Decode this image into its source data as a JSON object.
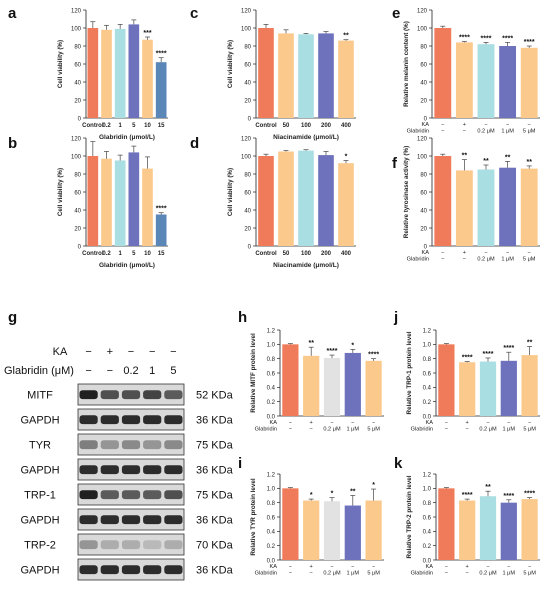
{
  "colors": {
    "control": "#F07B5A",
    "blue": "#A9DEE2",
    "dark": "#6E71BC",
    "peach": "#FBC98C",
    "gray": "#E2E2E2",
    "deep_blue": "#5A86B8",
    "orange": "#F7B057",
    "text": "#222222"
  },
  "western_blot": {
    "panel_label": "g",
    "ka_label": "KA",
    "glabridin_label": "Glabridin (μM)",
    "ka_marks": [
      "−",
      "+",
      "−",
      "−",
      "−"
    ],
    "glab_marks": [
      "−",
      "−",
      "0.2",
      "1",
      "5"
    ],
    "bands": [
      {
        "name": "MITF",
        "kda": "52 KDa"
      },
      {
        "name": "GAPDH",
        "kda": "36 KDa"
      },
      {
        "name": "TYR",
        "kda": "75 KDa"
      },
      {
        "name": "GAPDH",
        "kda": "36 KDa"
      },
      {
        "name": "TRP-1",
        "kda": "75 KDa"
      },
      {
        "name": "GAPDH",
        "kda": "36 KDa"
      },
      {
        "name": "TRP-2",
        "kda": "70 KDa"
      },
      {
        "name": "GAPDH",
        "kda": "36 KDa"
      }
    ]
  },
  "chart_data": [
    {
      "panel": "a",
      "type": "bar",
      "categories": [
        "Control",
        "0.2",
        "1",
        "5",
        "10",
        "15"
      ],
      "values": [
        100,
        98,
        99,
        104,
        87,
        62
      ],
      "errors": [
        7,
        5,
        5,
        5,
        3,
        5
      ],
      "significance": [
        "",
        "",
        "",
        "",
        "***",
        "****"
      ],
      "ylabel": "Cell viability (%)",
      "xlabel": "Glabridin (μmol/L)",
      "ylim": [
        0,
        120
      ],
      "yticks": [
        0,
        20,
        40,
        60,
        80,
        100,
        120
      ],
      "colors": [
        "#F07B5A",
        "#FBC98C",
        "#A9DEE2",
        "#6E71BC",
        "#FBC98C",
        "#5A86B8"
      ]
    },
    {
      "panel": "b",
      "type": "bar",
      "categories": [
        "Control",
        "0.2",
        "1",
        "5",
        "10",
        "15"
      ],
      "values": [
        100,
        97,
        95,
        104,
        86,
        35
      ],
      "errors": [
        16,
        8,
        6,
        7,
        13,
        2
      ],
      "significance": [
        "",
        "",
        "",
        "",
        "",
        "****"
      ],
      "ylabel": "Cell viability (%)",
      "xlabel": "Glabridin (μmol/L)",
      "ylim": [
        0,
        120
      ],
      "yticks": [
        0,
        20,
        40,
        60,
        80,
        100,
        120
      ],
      "colors": [
        "#F07B5A",
        "#FBC98C",
        "#A9DEE2",
        "#6E71BC",
        "#FBC98C",
        "#5A86B8"
      ]
    },
    {
      "panel": "c",
      "type": "bar",
      "categories": [
        "Control",
        "50",
        "100",
        "200",
        "400"
      ],
      "values": [
        100,
        94,
        93,
        94,
        86
      ],
      "errors": [
        4,
        4,
        1,
        2,
        1
      ],
      "significance": [
        "",
        "",
        "",
        "",
        "**"
      ],
      "ylabel": "Cell viability (%)",
      "xlabel": "Niacinamide (μmol/L)",
      "ylim": [
        0,
        120
      ],
      "yticks": [
        0,
        20,
        40,
        60,
        80,
        100,
        120
      ],
      "colors": [
        "#F07B5A",
        "#FBC98C",
        "#A9DEE2",
        "#6E71BC",
        "#FBC98C"
      ]
    },
    {
      "panel": "d",
      "type": "bar",
      "categories": [
        "Control",
        "50",
        "100",
        "200",
        "400"
      ],
      "values": [
        100,
        105,
        106,
        101,
        92
      ],
      "errors": [
        2,
        1,
        1,
        4,
        3
      ],
      "significance": [
        "",
        "",
        "",
        "",
        "*"
      ],
      "ylabel": "Cell viability (%)",
      "xlabel": "Niacinamide (μmol/L)",
      "ylim": [
        0,
        120
      ],
      "yticks": [
        0,
        20,
        40,
        60,
        80,
        100,
        120
      ],
      "colors": [
        "#F07B5A",
        "#FBC98C",
        "#A9DEE2",
        "#6E71BC",
        "#FBC98C"
      ]
    },
    {
      "panel": "e",
      "type": "bar",
      "values": [
        100,
        84,
        82,
        80,
        78
      ],
      "errors": [
        2,
        1,
        2,
        4,
        2
      ],
      "significance": [
        "",
        "****",
        "****",
        "****",
        "****"
      ],
      "ylabel": "Relative melanin content (%)",
      "ylim": [
        0,
        120
      ],
      "yticks": [
        0,
        20,
        40,
        60,
        80,
        100,
        120
      ],
      "ka_label": "KA",
      "glab_label": "Glabridin",
      "ka_marks": [
        "−",
        "+",
        "−",
        "−",
        "−"
      ],
      "glab_marks": [
        "−",
        "−",
        "0.2 μM",
        "1 μM",
        "5 μM"
      ],
      "colors": [
        "#F07B5A",
        "#FBC98C",
        "#A9DEE2",
        "#6E71BC",
        "#FBC98C"
      ]
    },
    {
      "panel": "f",
      "type": "bar",
      "values": [
        100,
        84,
        85,
        87,
        86
      ],
      "errors": [
        2,
        12,
        5,
        7,
        3
      ],
      "significance": [
        "",
        "**",
        "**",
        "**",
        "**"
      ],
      "ylabel": "Relative tyrosinase activity (%)",
      "ylim": [
        0,
        120
      ],
      "yticks": [
        0,
        20,
        40,
        60,
        80,
        100,
        120
      ],
      "ka_label": "KA",
      "glab_label": "Glabridin",
      "ka_marks": [
        "−",
        "+",
        "−",
        "−",
        "−"
      ],
      "glab_marks": [
        "−",
        "−",
        "0.2 μM",
        "1 μM",
        "5 μM"
      ],
      "colors": [
        "#F07B5A",
        "#FBC98C",
        "#A9DEE2",
        "#6E71BC",
        "#FBC98C"
      ]
    },
    {
      "panel": "h",
      "type": "bar",
      "values": [
        1.0,
        0.84,
        0.81,
        0.88,
        0.77
      ],
      "errors": [
        0.01,
        0.12,
        0.04,
        0.05,
        0.03
      ],
      "significance": [
        "",
        "**",
        "****",
        "*",
        "****"
      ],
      "ylabel": "Relative MITF protein level",
      "ylim": [
        0,
        1.2
      ],
      "yticks": [
        0.0,
        0.2,
        0.4,
        0.6,
        0.8,
        1.0,
        1.2
      ],
      "ka_label": "KA",
      "glab_label": "Glabridin",
      "ka_marks": [
        "−",
        "+",
        "−",
        "−",
        "−"
      ],
      "glab_marks": [
        "−",
        "−",
        "0.2 μM",
        "1 μM",
        "5 μM"
      ],
      "colors": [
        "#F07B5A",
        "#FBC98C",
        "#E2E2E2",
        "#6E71BC",
        "#FBC98C"
      ]
    },
    {
      "panel": "i",
      "type": "bar",
      "values": [
        1.0,
        0.83,
        0.82,
        0.76,
        0.83
      ],
      "errors": [
        0.01,
        0.02,
        0.05,
        0.14,
        0.16
      ],
      "significance": [
        "",
        "*",
        "*",
        "**",
        "*"
      ],
      "ylabel": "Relative TYR protein level",
      "ylim": [
        0,
        1.2
      ],
      "yticks": [
        0.0,
        0.2,
        0.4,
        0.6,
        0.8,
        1.0,
        1.2
      ],
      "ka_label": "KA",
      "glab_label": "Glabridin",
      "ka_marks": [
        "−",
        "+",
        "−",
        "−",
        "−"
      ],
      "glab_marks": [
        "−",
        "−",
        "0.2 μM",
        "1 μM",
        "5 μM"
      ],
      "colors": [
        "#F07B5A",
        "#FBC98C",
        "#E2E2E2",
        "#6E71BC",
        "#FBC98C"
      ]
    },
    {
      "panel": "j",
      "type": "bar",
      "values": [
        1.0,
        0.75,
        0.76,
        0.77,
        0.85
      ],
      "errors": [
        0.01,
        0.01,
        0.05,
        0.12,
        0.12
      ],
      "significance": [
        "",
        "****",
        "****",
        "****",
        "**"
      ],
      "ylabel": "Relative TRP-1 protein level",
      "ylim": [
        0,
        1.2
      ],
      "yticks": [
        0.0,
        0.2,
        0.4,
        0.6,
        0.8,
        1.0,
        1.2
      ],
      "ka_label": "KA",
      "glab_label": "Glabridin",
      "ka_marks": [
        "−",
        "+",
        "−",
        "−",
        "−"
      ],
      "glab_marks": [
        "−",
        "−",
        "0.2 μM",
        "1 μM",
        "5 μM"
      ],
      "colors": [
        "#F07B5A",
        "#FBC98C",
        "#A9DEE2",
        "#6E71BC",
        "#FBC98C"
      ]
    },
    {
      "panel": "k",
      "type": "bar",
      "values": [
        1.0,
        0.83,
        0.89,
        0.8,
        0.85
      ],
      "errors": [
        0.01,
        0.02,
        0.07,
        0.04,
        0.02
      ],
      "significance": [
        "",
        "****",
        "**",
        "****",
        "****"
      ],
      "ylabel": "Relative TRP-2 protein level",
      "ylim": [
        0,
        1.2
      ],
      "yticks": [
        0.0,
        0.2,
        0.4,
        0.6,
        0.8,
        1.0,
        1.2
      ],
      "ka_label": "KA",
      "glab_label": "Glabridin",
      "ka_marks": [
        "−",
        "+",
        "−",
        "−",
        "−"
      ],
      "glab_marks": [
        "−",
        "−",
        "0.2 μM",
        "1 μM",
        "5 μM"
      ],
      "colors": [
        "#F07B5A",
        "#FBC98C",
        "#A9DEE2",
        "#6E71BC",
        "#FBC98C"
      ]
    }
  ]
}
